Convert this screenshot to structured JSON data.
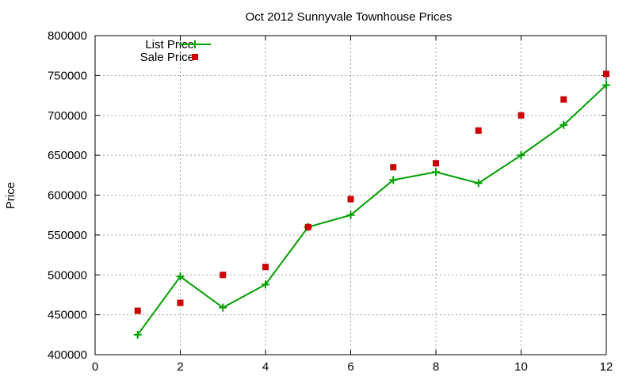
{
  "chart_data": {
    "type": "line",
    "title": "Oct 2012 Sunnyvale Townhouse Prices",
    "xlabel": "",
    "ylabel": "Price",
    "xlim": [
      0,
      12
    ],
    "ylim": [
      400000,
      800000
    ],
    "x_ticks": [
      0,
      2,
      4,
      6,
      8,
      10,
      12
    ],
    "y_ticks": [
      400000,
      450000,
      500000,
      550000,
      600000,
      650000,
      700000,
      750000,
      800000
    ],
    "grid": true,
    "legend_position": "top-left",
    "x": [
      1,
      2,
      3,
      4,
      5,
      6,
      7,
      8,
      9,
      10,
      11,
      12
    ],
    "series": [
      {
        "name": "List Price",
        "style": "linespoints",
        "marker": "plus",
        "color": "#00a000",
        "values": [
          425000,
          498000,
          459000,
          488000,
          560000,
          575000,
          619000,
          629000,
          615000,
          650000,
          688000,
          738000
        ]
      },
      {
        "name": "Sale Price",
        "style": "points",
        "marker": "square",
        "color": "#cc0000",
        "values": [
          455000,
          465000,
          500000,
          510000,
          560000,
          595000,
          635000,
          640000,
          681000,
          700000,
          720000,
          752000
        ]
      }
    ]
  }
}
